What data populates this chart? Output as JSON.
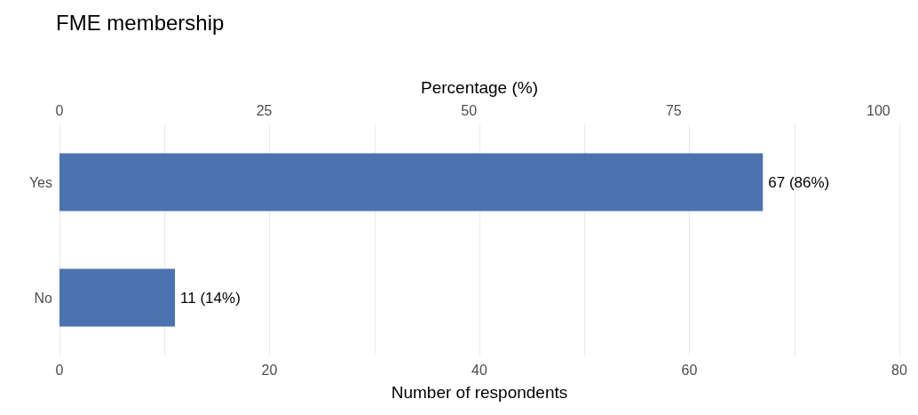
{
  "chart_data": {
    "type": "bar",
    "orientation": "horizontal",
    "title": "FME membership",
    "xlabel": "Number of respondents",
    "x2label": "Percentage (%)",
    "categories": [
      "Yes",
      "No"
    ],
    "values": [
      67,
      11
    ],
    "color": "#4c72b0",
    "value_labels": [
      "67 (86%)",
      "11 (14%)"
    ],
    "xlim": [
      0,
      80
    ],
    "xticks": [
      0,
      {
        "value": 10,
        "label": null
      },
      20,
      {
        "value": 30,
        "label": null
      },
      40,
      {
        "value": 50,
        "label": null
      },
      60,
      {
        "value": 70,
        "label": null
      },
      80
    ],
    "x2lim": [
      0,
      102.56
    ],
    "x2ticks": [
      0,
      25,
      50,
      75,
      100
    ],
    "grid": "x"
  }
}
